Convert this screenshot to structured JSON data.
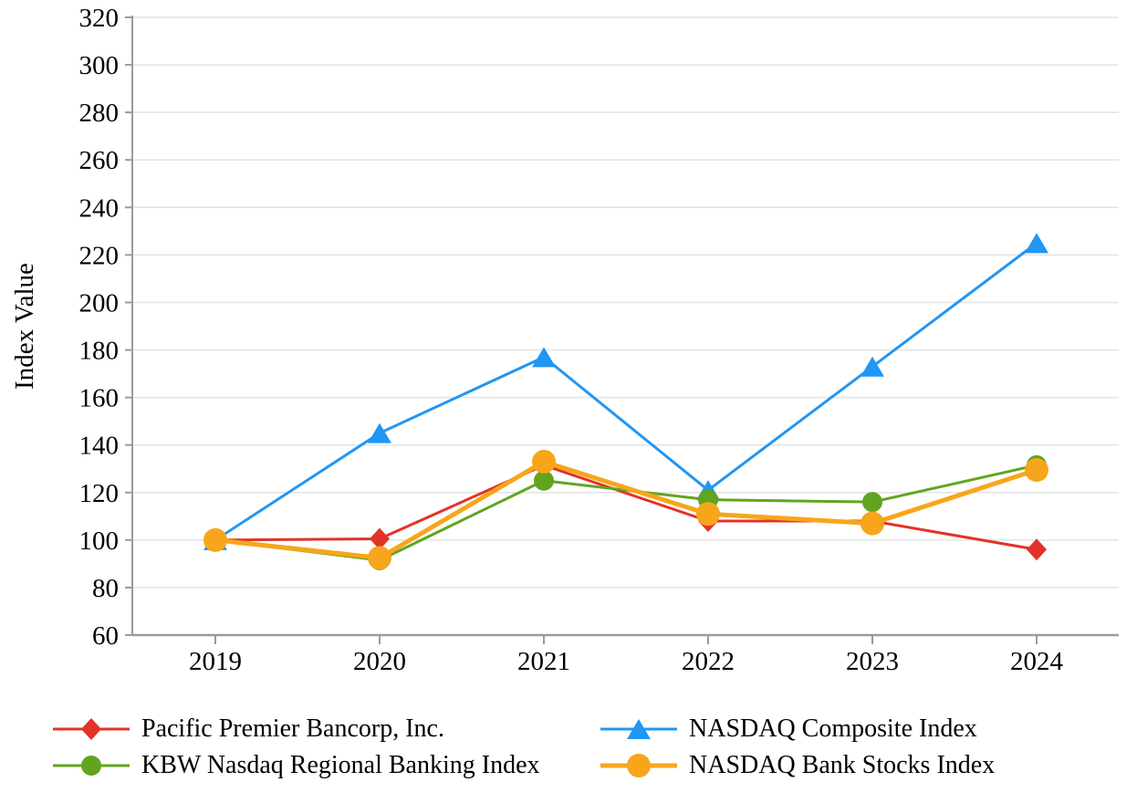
{
  "chart_data": {
    "type": "line",
    "title": "",
    "xlabel": "",
    "ylabel": "Index Value",
    "ylim": [
      60,
      320
    ],
    "ytick_step": 20,
    "grid": true,
    "legend_position": "bottom",
    "categories": [
      "2019",
      "2020",
      "2021",
      "2022",
      "2023",
      "2024"
    ],
    "series": [
      {
        "name": "Pacific Premier Bancorp, Inc.",
        "color": "#E33228",
        "marker": "diamond",
        "marker_size": 11,
        "line_width": 3,
        "values": [
          100,
          100.5,
          131.5,
          108,
          108,
          96
        ]
      },
      {
        "name": "NASDAQ Composite Index",
        "color": "#2196F3",
        "marker": "triangle",
        "marker_size": 12,
        "line_width": 3,
        "values": [
          100,
          145,
          177,
          121,
          173,
          225
        ]
      },
      {
        "name": "KBW Nasdaq Regional Banking Index",
        "color": "#62A420",
        "marker": "circle",
        "marker_size": 11,
        "line_width": 3,
        "values": [
          100,
          91.5,
          125,
          117,
          116,
          131.5
        ]
      },
      {
        "name": "NASDAQ Bank Stocks Index",
        "color": "#F7A61B",
        "marker": "circle",
        "marker_size": 13,
        "line_width": 5,
        "values": [
          100,
          92.5,
          133,
          111,
          107,
          129.5
        ]
      }
    ]
  },
  "colors": {
    "gridline": "#E3E3E3",
    "axis": "#9B9B9B",
    "text": "#000000"
  }
}
